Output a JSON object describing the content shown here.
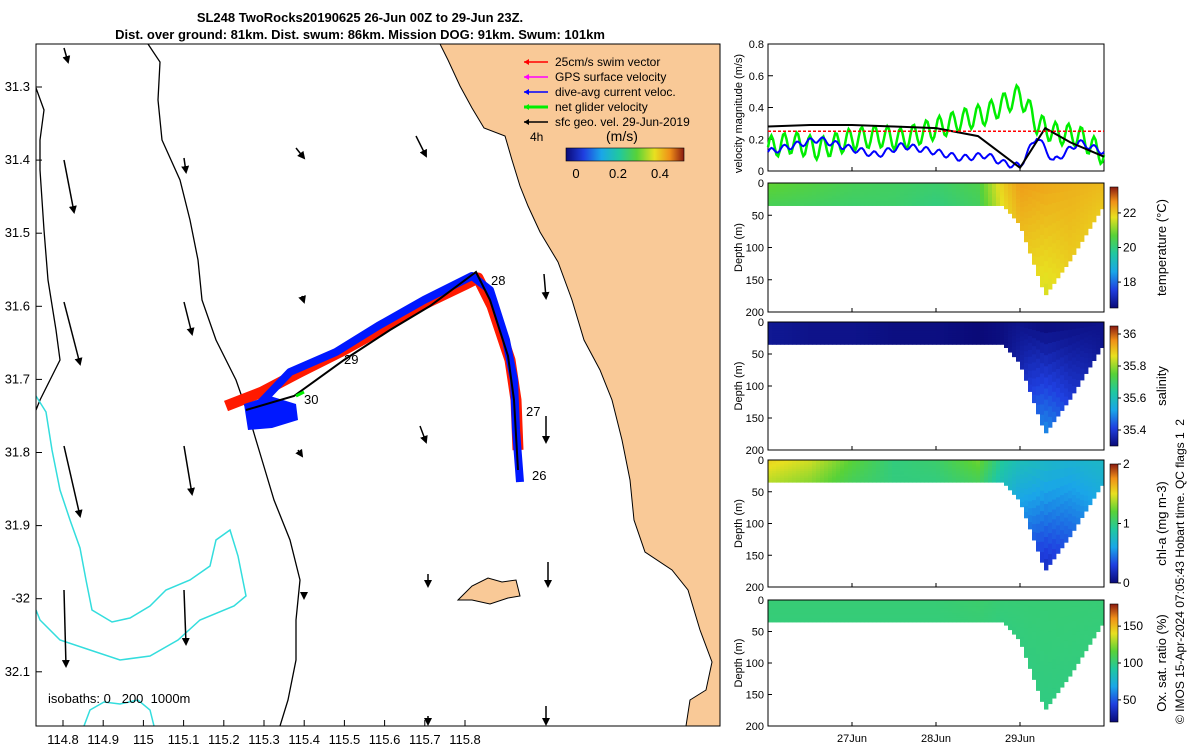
{
  "title": {
    "line1": "SL248 TwoRocks20190625 26-Jun 00Z to 29-Jun 23Z.",
    "line2": "Dist. over ground: 81km. Dist. swum: 86km. Mission DOG: 91km. Swum: 101km"
  },
  "map": {
    "lon_ticks": [
      "114.8",
      "114.9",
      "115",
      "115.1",
      "115.2",
      "115.3",
      "115.4",
      "115.5",
      "115.6",
      "115.7",
      "115.8"
    ],
    "lat_ticks": [
      "31.3",
      "31.4",
      "31.5",
      "31.6",
      "31.7",
      "31.8",
      "31.9",
      "-32",
      "32.1"
    ],
    "legend": [
      {
        "label": "25cm/s swim vector",
        "color": "#ff0000"
      },
      {
        "label": "GPS surface velocity",
        "color": "#ff00ff"
      },
      {
        "label": "dive-avg current veloc.",
        "color": "#0000ff"
      },
      {
        "label": "net glider velocity",
        "color": "#00ee00"
      },
      {
        "label": "sfc geo. vel. 29-Jun-2019",
        "color": "#000000"
      }
    ],
    "time_step_label": "4h",
    "colorbar_title": "(m/s)",
    "colorbar_ticks": [
      "0",
      "0.2",
      "0.4"
    ],
    "day_labels": [
      "26",
      "27",
      "28",
      "29",
      "30"
    ],
    "isobaths_label": "isobaths: 0   200  1000m",
    "land_color": "#f9c997",
    "isobath_color": "#33dddd"
  },
  "chart_data": [
    {
      "type": "line",
      "title": "",
      "xlabel": "",
      "ylabel": "velocity magnitude (m/s)",
      "ylim": [
        0,
        0.8
      ],
      "yticks": [
        "0",
        "0.2",
        "0.4",
        "0.6",
        "0.8"
      ],
      "x_range_days": [
        26.0,
        30.0
      ],
      "series": [
        {
          "name": "net glider velocity",
          "color": "#00ee00",
          "x": [
            26.0,
            26.3,
            26.6,
            27.0,
            27.3,
            27.6,
            28.0,
            28.3,
            28.6,
            28.8,
            29.0,
            29.2,
            29.4,
            29.7,
            30.0
          ],
          "y": [
            0.15,
            0.18,
            0.14,
            0.2,
            0.22,
            0.2,
            0.27,
            0.32,
            0.36,
            0.42,
            0.48,
            0.3,
            0.24,
            0.22,
            0.1
          ]
        },
        {
          "name": "dive-avg current veloc.",
          "color": "#0000ff",
          "x": [
            26.0,
            26.3,
            26.6,
            27.0,
            27.3,
            27.6,
            28.0,
            28.3,
            28.6,
            28.8,
            29.0,
            29.2,
            29.4,
            29.7,
            30.0
          ],
          "y": [
            0.12,
            0.16,
            0.2,
            0.14,
            0.1,
            0.16,
            0.12,
            0.08,
            0.1,
            0.05,
            0.03,
            0.22,
            0.06,
            0.18,
            0.12
          ]
        },
        {
          "name": "sfc geo. vel. 29-Jun-2019",
          "color": "#000000",
          "x": [
            26.0,
            26.5,
            27.0,
            27.5,
            28.0,
            28.5,
            28.8,
            29.0,
            29.3,
            29.6,
            30.0
          ],
          "y": [
            0.28,
            0.29,
            0.29,
            0.28,
            0.27,
            0.22,
            0.1,
            0.02,
            0.27,
            0.18,
            0.09
          ]
        },
        {
          "name": "25cm/s swim vector",
          "color": "#ff0000",
          "x": [
            26.0,
            30.0
          ],
          "y": [
            0.25,
            0.25
          ]
        }
      ]
    },
    {
      "type": "heatmap",
      "variable": "temperature",
      "ylabel": "Depth (m)",
      "colorbar_label": "temperature (°C)",
      "ylim": [
        200,
        0
      ],
      "yticks": [
        "0",
        "50",
        "100",
        "150",
        "200"
      ],
      "clim": [
        16.5,
        23.5
      ],
      "colorbar_ticks": [
        "18",
        "20",
        "22"
      ],
      "profile_days": [
        26.0,
        26.5,
        27.0,
        27.5,
        28.0,
        28.5,
        28.8,
        29.0,
        29.3,
        29.6,
        30.0
      ],
      "max_depth_m": [
        35,
        35,
        35,
        35,
        35,
        35,
        35,
        65,
        175,
        120,
        35
      ],
      "surface_value": [
        20.8,
        20.6,
        20.4,
        20.3,
        20.2,
        20.5,
        22.0,
        22.5,
        22.4,
        22.3,
        22.2
      ],
      "deep_value": [
        20.4,
        20.3,
        20.2,
        20.2,
        20.0,
        20.3,
        21.8,
        22.2,
        21.6,
        22.0,
        22.0
      ]
    },
    {
      "type": "heatmap",
      "variable": "salinity",
      "ylabel": "Depth (m)",
      "colorbar_label": "salinity",
      "ylim": [
        200,
        0
      ],
      "yticks": [
        "0",
        "50",
        "100",
        "150",
        "200"
      ],
      "clim": [
        35.3,
        36.05
      ],
      "colorbar_ticks": [
        "35.4",
        "35.6",
        "35.8",
        "36"
      ],
      "profile_days": [
        26.0,
        26.5,
        27.0,
        27.5,
        28.0,
        28.5,
        28.8,
        29.0,
        29.3,
        29.6,
        30.0
      ],
      "max_depth_m": [
        35,
        35,
        35,
        35,
        35,
        35,
        35,
        65,
        175,
        120,
        35
      ],
      "surface_value": [
        35.33,
        35.32,
        35.32,
        35.31,
        35.31,
        35.3,
        35.31,
        35.32,
        35.3,
        35.31,
        35.32
      ],
      "deep_value": [
        35.33,
        35.32,
        35.32,
        35.31,
        35.31,
        35.3,
        35.31,
        35.35,
        35.5,
        35.4,
        35.32
      ]
    },
    {
      "type": "heatmap",
      "variable": "chl-a",
      "ylabel": "Depth (m)",
      "colorbar_label": "chl-a (mg m-3)",
      "ylim": [
        200,
        0
      ],
      "yticks": [
        "0",
        "50",
        "100",
        "150",
        "200"
      ],
      "clim": [
        0,
        2
      ],
      "colorbar_ticks": [
        "0",
        "1",
        "2"
      ],
      "profile_days": [
        26.0,
        26.5,
        27.0,
        27.5,
        28.0,
        28.5,
        28.8,
        29.0,
        29.3,
        29.6,
        30.0
      ],
      "max_depth_m": [
        35,
        35,
        35,
        35,
        35,
        35,
        35,
        65,
        175,
        120,
        35
      ],
      "surface_value": [
        1.55,
        1.45,
        1.2,
        1.0,
        1.05,
        1.25,
        0.9,
        0.8,
        0.75,
        0.7,
        0.75
      ],
      "deep_value": [
        1.4,
        1.3,
        1.1,
        1.0,
        1.0,
        1.1,
        0.8,
        0.6,
        0.2,
        0.4,
        0.7
      ]
    },
    {
      "type": "heatmap",
      "variable": "oxygen saturation",
      "ylabel": "Depth (m)",
      "colorbar_label": "Ox. sat. ratio (%)",
      "ylim": [
        200,
        0
      ],
      "yticks": [
        "0",
        "50",
        "100",
        "150",
        "200"
      ],
      "clim": [
        20,
        180
      ],
      "colorbar_ticks": [
        "50",
        "100",
        "150"
      ],
      "profile_days": [
        26.0,
        26.5,
        27.0,
        27.5,
        28.0,
        28.5,
        28.8,
        29.0,
        29.3,
        29.6,
        30.0
      ],
      "max_depth_m": [
        35,
        35,
        35,
        35,
        35,
        35,
        35,
        65,
        175,
        120,
        35
      ],
      "surface_value": [
        102,
        102,
        102,
        102,
        102,
        104,
        102,
        102,
        102,
        102,
        102
      ],
      "deep_value": [
        101,
        101,
        101,
        101,
        101,
        102,
        100,
        100,
        99,
        100,
        101
      ]
    }
  ],
  "time_axis": {
    "ticks": [
      "27Jun",
      "28Jun",
      "29Jun"
    ]
  },
  "side_note": "© IMOS 15-Apr-2024 07:05:43 Hobart time. QC flags 1  2"
}
